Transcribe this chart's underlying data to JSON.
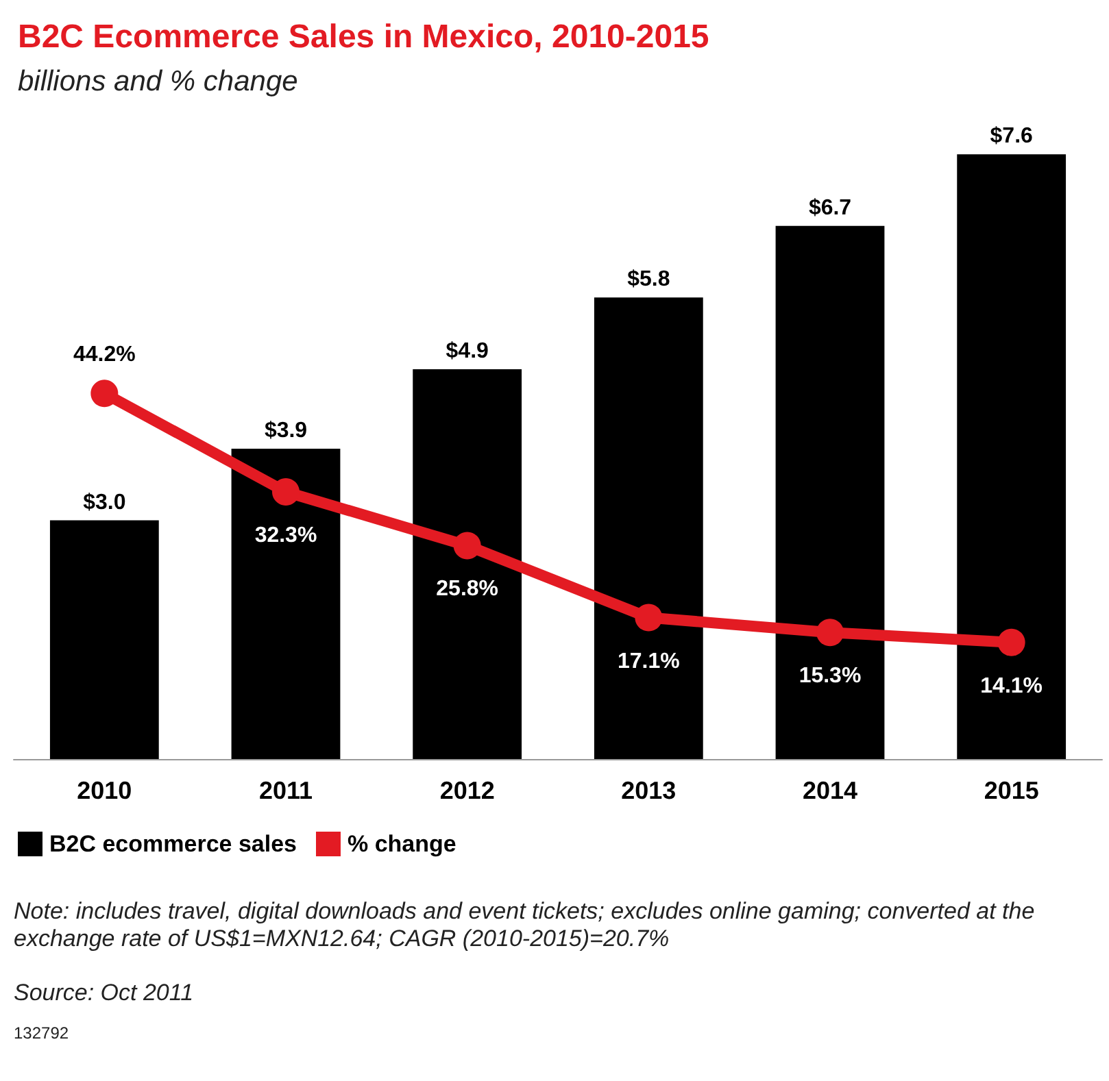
{
  "chart_data": {
    "type": "bar",
    "title": "B2C Ecommerce Sales in Mexico, 2010-2015",
    "subtitle": "billions and % change",
    "categories": [
      "2010",
      "2011",
      "2012",
      "2013",
      "2014",
      "2015"
    ],
    "series": [
      {
        "name": "B2C ecommerce sales",
        "color": "#000000",
        "values": [
          3.0,
          3.9,
          4.9,
          5.8,
          6.7,
          7.6
        ],
        "value_labels": [
          "$3.0",
          "$3.9",
          "$4.9",
          "$5.8",
          "$6.7",
          "$7.6"
        ]
      },
      {
        "name": "% change",
        "type": "line",
        "axis": "y2",
        "color": "#e31b23",
        "marker": "circle",
        "values": [
          44.2,
          32.3,
          25.8,
          17.1,
          15.3,
          14.1
        ],
        "value_labels": [
          "44.2%",
          "32.3%",
          "25.8%",
          "17.1%",
          "15.3%",
          "14.1%"
        ]
      }
    ],
    "legend": "bottom left",
    "grid": false,
    "tick_labels": "x",
    "annotations": [
      "Note: includes travel, digital downloads and event tickets; excludes online gaming; converted at the exchange rate of US$1=MXN12.64; CAGR (2010-2015)=20.7%",
      "Source: Oct 2011",
      "132792"
    ]
  }
}
